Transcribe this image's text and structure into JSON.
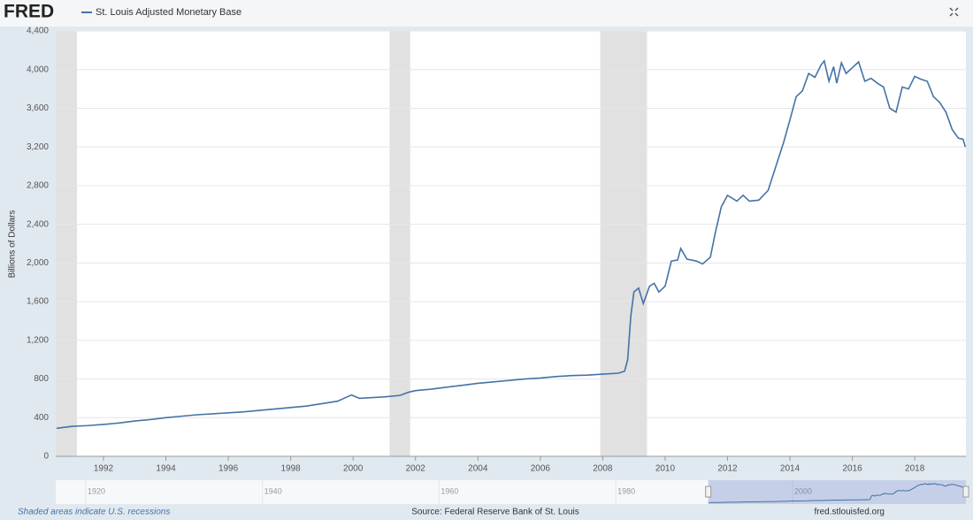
{
  "chart_data": {
    "type": "line",
    "logo": "FRED",
    "ylabel": "Billions of Dollars",
    "note": "Shaded areas indicate U.S. recessions",
    "source": "Source: Federal Reserve Bank of St. Louis",
    "site": "fred.stlouisfed.org",
    "xlim": [
      1990.47,
      2019.64
    ],
    "xticks": [
      1992,
      1994,
      1996,
      1998,
      2000,
      2002,
      2004,
      2006,
      2008,
      2010,
      2012,
      2014,
      2016,
      2018
    ],
    "ylim": [
      0,
      4400
    ],
    "yticks": [
      0,
      400,
      800,
      {
        "value": 1200,
        "label": "1,200"
      },
      {
        "value": 1600,
        "label": "1,600"
      },
      {
        "value": 2000,
        "label": "2,000"
      },
      {
        "value": 2400,
        "label": "2,400"
      },
      {
        "value": 2800,
        "label": "2,800"
      },
      {
        "value": 3200,
        "label": "3,200"
      },
      {
        "value": 3600,
        "label": "3,600"
      },
      {
        "value": 4000,
        "label": "4,000"
      },
      {
        "value": 4400,
        "label": "4,400"
      }
    ],
    "grid": true,
    "recessions": [
      [
        1990.47,
        1991.15
      ],
      [
        2001.17,
        2001.83
      ],
      [
        2007.92,
        2009.42
      ]
    ],
    "navigator": {
      "xlim": [
        1916.6,
        2019.64
      ],
      "xticks": [
        1920,
        1940,
        1960,
        1980,
        2000
      ]
    },
    "x": [
      1990.5,
      1991.0,
      1991.5,
      1992.0,
      1992.5,
      1993.0,
      1993.5,
      1994.0,
      1994.5,
      1995.0,
      1995.5,
      1996.0,
      1996.5,
      1997.0,
      1997.5,
      1998.0,
      1998.5,
      1999.0,
      1999.5,
      1999.95,
      2000.2,
      2000.5,
      2001.0,
      2001.5,
      2001.8,
      2002.0,
      2002.5,
      2003.0,
      2003.5,
      2004.0,
      2004.5,
      2005.0,
      2005.5,
      2006.0,
      2006.5,
      2007.0,
      2007.5,
      2008.0,
      2008.5,
      2008.7,
      2008.8,
      2008.9,
      2009.0,
      2009.15,
      2009.3,
      2009.5,
      2009.65,
      2009.8,
      2010.0,
      2010.2,
      2010.4,
      2010.5,
      2010.7,
      2011.0,
      2011.2,
      2011.45,
      2011.6,
      2011.8,
      2012.0,
      2012.3,
      2012.5,
      2012.7,
      2013.0,
      2013.3,
      2013.5,
      2013.8,
      2014.0,
      2014.2,
      2014.4,
      2014.6,
      2014.8,
      2015.0,
      2015.1,
      2015.25,
      2015.4,
      2015.5,
      2015.65,
      2015.8,
      2016.0,
      2016.2,
      2016.4,
      2016.6,
      2016.8,
      2017.0,
      2017.2,
      2017.4,
      2017.6,
      2017.8,
      2018.0,
      2018.2,
      2018.4,
      2018.6,
      2018.8,
      2019.0,
      2019.2,
      2019.4,
      2019.55,
      2019.62
    ],
    "series": [
      {
        "name": "St. Louis Adjusted Monetary Base",
        "color": "#4572a7",
        "values": [
          290,
          310,
          318,
          330,
          345,
          365,
          380,
          400,
          415,
          430,
          440,
          450,
          460,
          475,
          490,
          505,
          520,
          545,
          570,
          635,
          600,
          605,
          615,
          630,
          665,
          680,
          695,
          715,
          735,
          755,
          770,
          785,
          800,
          810,
          825,
          835,
          840,
          850,
          860,
          880,
          1000,
          1450,
          1700,
          1740,
          1580,
          1760,
          1790,
          1700,
          1760,
          2020,
          2030,
          2150,
          2040,
          2020,
          1990,
          2060,
          2300,
          2580,
          2700,
          2640,
          2700,
          2640,
          2650,
          2750,
          2950,
          3250,
          3480,
          3720,
          3780,
          3960,
          3920,
          4050,
          4090,
          3880,
          4030,
          3860,
          4070,
          3960,
          4020,
          4080,
          3880,
          3910,
          3860,
          3820,
          3600,
          3560,
          3820,
          3800,
          3930,
          3900,
          3880,
          3720,
          3660,
          3560,
          3380,
          3290,
          3280,
          3200
        ]
      }
    ]
  }
}
